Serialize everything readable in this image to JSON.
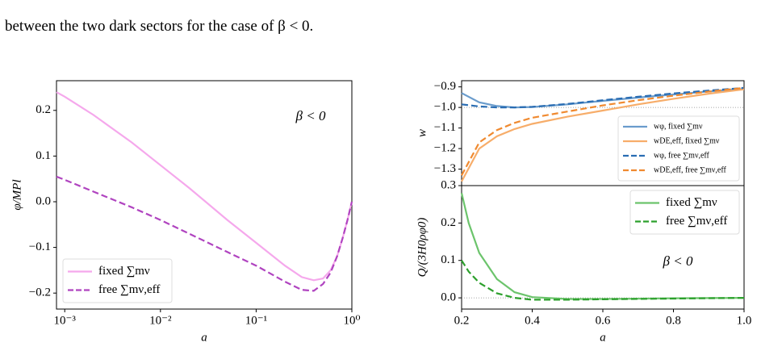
{
  "text": "between the two dark sectors for the case of β < 0.",
  "chart_data": [
    {
      "type": "line",
      "log_x": true,
      "xlabel": "a",
      "ylabel": "φ/MPl",
      "annotation": "β < 0",
      "legend": "lower left",
      "xlim": [
        0.00082,
        1
      ],
      "ylim": [
        -0.235,
        0.265
      ],
      "xticks": [
        {
          "value": 0.001,
          "label": "10⁻³"
        },
        {
          "value": 0.01,
          "label": "10⁻²"
        },
        {
          "value": 0.1,
          "label": "10⁻¹"
        },
        {
          "value": 1,
          "label": "10⁰"
        }
      ],
      "yticks": [
        {
          "value": -0.2,
          "label": "−0.2"
        },
        {
          "value": -0.1,
          "label": "−0.1"
        },
        {
          "value": 0,
          "label": "0.0"
        },
        0.1,
        0.2
      ],
      "x": [
        0.00082,
        0.001,
        0.002,
        0.005,
        0.01,
        0.02,
        0.05,
        0.1,
        0.2,
        0.3,
        0.4,
        0.5,
        0.6,
        0.7,
        0.8,
        0.9,
        1.0
      ],
      "series": [
        {
          "name": "fixed ∑mν",
          "color": "#f5a8ec",
          "dash": false,
          "values": [
            0.24,
            0.23,
            0.19,
            0.13,
            0.08,
            0.03,
            -0.04,
            -0.09,
            -0.14,
            -0.165,
            -0.172,
            -0.168,
            -0.15,
            -0.12,
            -0.08,
            -0.04,
            0.0
          ]
        },
        {
          "name": "free ∑mν,eff",
          "color": "#b044c0",
          "dash": true,
          "values": [
            0.055,
            0.048,
            0.022,
            -0.012,
            -0.04,
            -0.07,
            -0.11,
            -0.14,
            -0.175,
            -0.193,
            -0.195,
            -0.18,
            -0.155,
            -0.12,
            -0.08,
            -0.04,
            0.0
          ]
        }
      ]
    },
    {
      "type": "line",
      "log_x": false,
      "ylabel": "w",
      "legend": "lower right",
      "hline": -1,
      "xlim": [
        0.2,
        1.0
      ],
      "ylim": [
        -1.38,
        -0.87
      ],
      "yticks": [
        {
          "value": -0.9,
          "label": "−0.9"
        },
        {
          "value": -1.0,
          "label": "−1.0"
        },
        {
          "value": -1.1,
          "label": "−1.1"
        },
        {
          "value": -1.2,
          "label": "−1.2"
        },
        {
          "value": -1.3,
          "label": "−1.3"
        }
      ],
      "x": [
        0.2,
        0.25,
        0.3,
        0.35,
        0.4,
        0.5,
        0.6,
        0.7,
        0.8,
        0.9,
        1.0
      ],
      "series": [
        {
          "name": "wφ, fixed ∑mν",
          "color": "#6a9ccc",
          "dash": false,
          "values": [
            -0.93,
            -0.975,
            -0.993,
            -1.0,
            -0.998,
            -0.985,
            -0.968,
            -0.952,
            -0.937,
            -0.922,
            -0.91
          ]
        },
        {
          "name": "wDE,eff, fixed ∑mν",
          "color": "#f7ad6a",
          "dash": false,
          "values": [
            -1.36,
            -1.2,
            -1.14,
            -1.105,
            -1.08,
            -1.045,
            -1.015,
            -0.985,
            -0.958,
            -0.933,
            -0.912
          ]
        },
        {
          "name": "wφ, free ∑mν,eff",
          "color": "#2a6db3",
          "dash": true,
          "values": [
            -0.985,
            -0.995,
            -1.0,
            -1.0,
            -0.997,
            -0.983,
            -0.965,
            -0.948,
            -0.932,
            -0.918,
            -0.905
          ]
        },
        {
          "name": "wDE,eff, free ∑mν,eff",
          "color": "#f08a30",
          "dash": true,
          "values": [
            -1.33,
            -1.17,
            -1.11,
            -1.075,
            -1.05,
            -1.02,
            -0.99,
            -0.965,
            -0.943,
            -0.923,
            -0.905
          ]
        }
      ]
    },
    {
      "type": "line",
      "log_x": false,
      "xlabel": "a",
      "ylabel": "Q/(3H0ρφ0)",
      "annotation": "β < 0",
      "legend": "upper right",
      "hline": 0,
      "xlim": [
        0.2,
        1.0
      ],
      "ylim": [
        -0.03,
        0.3
      ],
      "xticks": [
        0.2,
        0.4,
        0.6,
        0.8,
        {
          "value": 1.0,
          "label": "1.0"
        }
      ],
      "yticks": [
        {
          "value": 0,
          "label": "0.0"
        },
        0.1,
        0.2,
        0.3
      ],
      "x": [
        0.2,
        0.22,
        0.25,
        0.3,
        0.35,
        0.4,
        0.5,
        0.6,
        0.8,
        1.0
      ],
      "series": [
        {
          "name": "fixed ∑mν",
          "color": "#6cc46c",
          "dash": false,
          "values": [
            0.28,
            0.2,
            0.12,
            0.05,
            0.015,
            0.002,
            -0.003,
            -0.003,
            -0.001,
            0
          ]
        },
        {
          "name": "free ∑mν,eff",
          "color": "#2ca02c",
          "dash": true,
          "values": [
            0.1,
            0.07,
            0.04,
            0.012,
            0.0,
            -0.005,
            -0.005,
            -0.004,
            -0.002,
            0
          ]
        }
      ]
    }
  ]
}
